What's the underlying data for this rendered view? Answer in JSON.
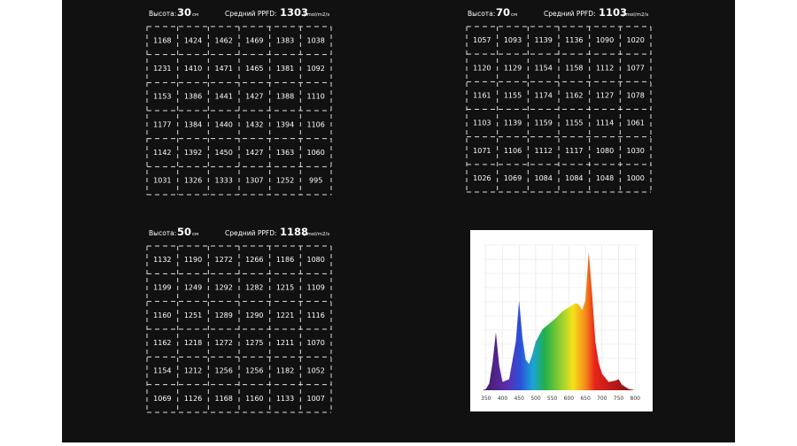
{
  "grids": [
    {
      "height_label": "Высота:",
      "height": "30",
      "height_unit": "см",
      "avg_label": "Средний PPFD:",
      "avg": "1303",
      "avg_unit": "μmol/m2/s",
      "rows": [
        [
          1168,
          1424,
          1462,
          1469,
          1383,
          1038
        ],
        [
          1231,
          1410,
          1471,
          1465,
          1381,
          1092
        ],
        [
          1153,
          1386,
          1441,
          1427,
          1388,
          1110
        ],
        [
          1177,
          1384,
          1440,
          1432,
          1394,
          1106
        ],
        [
          1142,
          1392,
          1450,
          1427,
          1363,
          1060
        ],
        [
          1031,
          1326,
          1333,
          1307,
          1252,
          995
        ]
      ]
    },
    {
      "height_label": "Высота:",
      "height": "70",
      "height_unit": "см",
      "avg_label": "Средний PPFD:",
      "avg": "1103",
      "avg_unit": "μmol/m2/s",
      "rows": [
        [
          1057,
          1093,
          1139,
          1136,
          1090,
          1020
        ],
        [
          1120,
          1129,
          1154,
          1158,
          1112,
          1077
        ],
        [
          1161,
          1155,
          1174,
          1162,
          1127,
          1078
        ],
        [
          1103,
          1139,
          1159,
          1155,
          1114,
          1061
        ],
        [
          1071,
          1106,
          1112,
          1117,
          1080,
          1030
        ],
        [
          1026,
          1069,
          1084,
          1084,
          1048,
          1000
        ]
      ]
    },
    {
      "height_label": "Высота:",
      "height": "50",
      "height_unit": "см",
      "avg_label": "Средний PPFD:",
      "avg": "1188",
      "avg_unit": "μmol/m2/s",
      "rows": [
        [
          1132,
          1190,
          1272,
          1266,
          1186,
          1080
        ],
        [
          1199,
          1249,
          1292,
          1282,
          1215,
          1109
        ],
        [
          1160,
          1251,
          1289,
          1290,
          1221,
          1116
        ],
        [
          1162,
          1218,
          1272,
          1275,
          1211,
          1070
        ],
        [
          1154,
          1212,
          1256,
          1256,
          1182,
          1052
        ],
        [
          1069,
          1126,
          1168,
          1160,
          1133,
          1007
        ]
      ]
    }
  ],
  "chart_data": {
    "type": "area",
    "x": [
      340,
      350,
      360,
      370,
      380,
      390,
      400,
      420,
      440,
      450,
      460,
      470,
      480,
      490,
      500,
      520,
      540,
      560,
      580,
      600,
      620,
      630,
      640,
      650,
      660,
      670,
      680,
      690,
      700,
      720,
      740,
      750,
      760,
      780,
      800
    ],
    "values": [
      0,
      1,
      5,
      20,
      42,
      18,
      6,
      8,
      35,
      65,
      38,
      22,
      19,
      26,
      35,
      44,
      48,
      52,
      57,
      60,
      63,
      62,
      58,
      65,
      100,
      70,
      35,
      20,
      12,
      6,
      7,
      8,
      4,
      1,
      0
    ],
    "xlim": [
      340,
      810
    ],
    "ylim": [
      0,
      105
    ],
    "xticks": [
      350,
      400,
      450,
      500,
      550,
      600,
      650,
      700,
      750,
      800
    ]
  }
}
